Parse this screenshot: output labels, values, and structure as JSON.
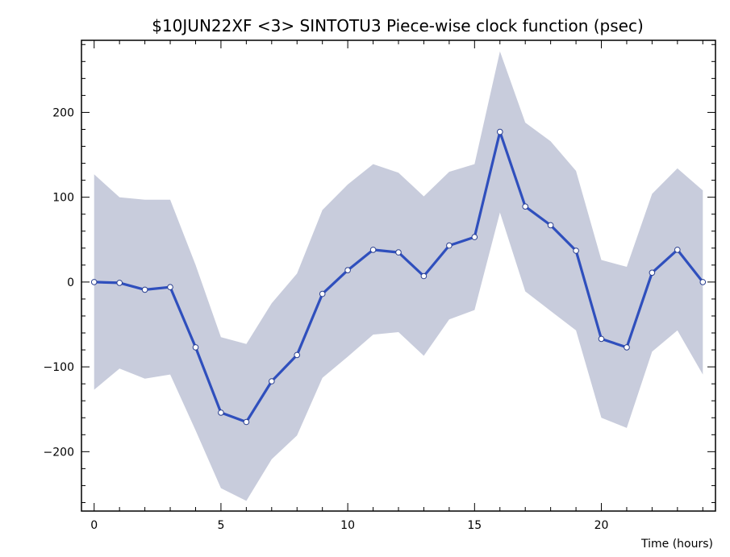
{
  "chart_data": {
    "type": "line",
    "title": "$10JUN22XF <3>  SINTOTU3  Piece-wise clock function (psec)",
    "xlabel": "Time (hours)",
    "ylabel": "",
    "xlim": [
      -0.5,
      24.5
    ],
    "ylim": [
      -270,
      285
    ],
    "x_ticks": [
      0,
      5,
      10,
      15,
      20
    ],
    "y_ticks": [
      -200,
      -100,
      0,
      100,
      200
    ],
    "x_tick_labels": [
      "0",
      "5",
      "10",
      "15",
      "20"
    ],
    "y_tick_labels": [
      "−200",
      "−100",
      "0",
      "100",
      "200"
    ],
    "x": [
      0,
      1,
      2,
      3,
      4,
      5,
      6,
      7,
      8,
      9,
      10,
      11,
      12,
      13,
      14,
      15,
      16,
      17,
      18,
      19,
      20,
      21,
      22,
      23,
      24
    ],
    "series": [
      {
        "values": [
          0,
          -1,
          -9,
          -6,
          -77,
          -154,
          -165,
          -117,
          -86,
          -14,
          14,
          38,
          35,
          7,
          43,
          53,
          177,
          89,
          67,
          37,
          -67,
          -77,
          11,
          38,
          0
        ]
      }
    ],
    "band": {
      "upper": [
        127,
        100,
        97,
        97,
        20,
        -65,
        -73,
        -25,
        10,
        85,
        115,
        139,
        129,
        101,
        130,
        139,
        272,
        188,
        166,
        131,
        26,
        18,
        104,
        134,
        108
      ],
      "lower": [
        -127,
        -102,
        -114,
        -109,
        -175,
        -243,
        -258,
        -209,
        -181,
        -113,
        -88,
        -62,
        -59,
        -87,
        -44,
        -33,
        82,
        -11,
        -34,
        -57,
        -160,
        -172,
        -82,
        -57,
        -109
      ]
    },
    "grid": false,
    "legend": "none",
    "colors": {
      "line": "#2f4fbd",
      "band": "#c8ccdc",
      "marker_fill": "#ffffff",
      "axis": "#000000"
    }
  }
}
